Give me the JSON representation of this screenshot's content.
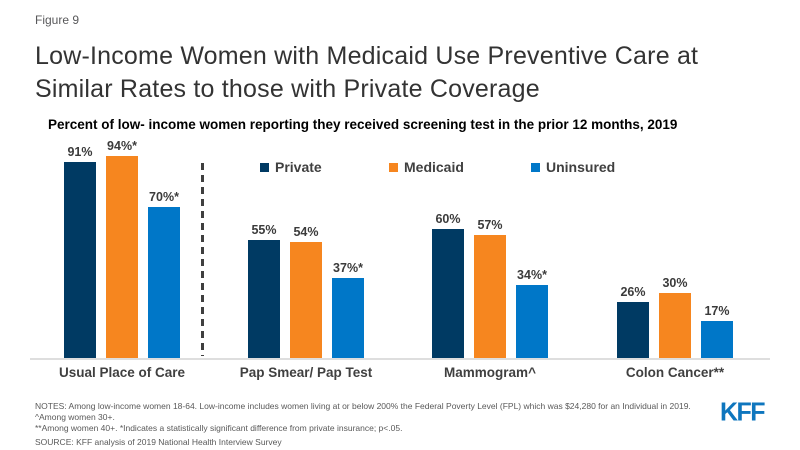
{
  "figure_label": "Figure 9",
  "title": {
    "line1": "Low-Income Women with Medicaid Use Preventive Care at",
    "line2": "Similar Rates to those with Private Coverage",
    "full": "Low-Income Women with Medicaid Use Preventive Care at Similar Rates to those with Private Coverage"
  },
  "subtitle": "Percent of low- income women reporting they received screening test in the prior 12 months, 2019",
  "colors": {
    "private": "#003a63",
    "medicaid": "#f6861f",
    "uninsured": "#0077c8",
    "kff_blue": "#0e76be",
    "baseline_gray": "#dedede",
    "text_dark": "#404040"
  },
  "legend": [
    {
      "label": "Private",
      "color": "#003a63"
    },
    {
      "label": "Medicaid",
      "color": "#f6861f"
    },
    {
      "label": "Uninsured",
      "color": "#0077c8"
    }
  ],
  "chart_data": {
    "type": "bar",
    "title": "Percent of low- income women reporting they received screening test in the prior 12 months, 2019",
    "categories": [
      "Usual Place of Care",
      "Pap Smear/ Pap Test",
      "Mammogram^",
      "Colon Cancer**"
    ],
    "series": [
      {
        "name": "Private",
        "values": [
          91,
          55,
          60,
          26
        ],
        "labels": [
          "91%",
          "55%",
          "60%",
          "26%"
        ]
      },
      {
        "name": "Medicaid",
        "values": [
          94,
          54,
          57,
          30
        ],
        "labels": [
          "94%*",
          "54%",
          "57%",
          "30%"
        ]
      },
      {
        "name": "Uninsured",
        "values": [
          70,
          37,
          34,
          17
        ],
        "labels": [
          "70%*",
          "37%*",
          "34%*",
          "17%"
        ]
      }
    ],
    "ylim": [
      0,
      100
    ],
    "grid": false,
    "legend_position": "top",
    "separator_after_category_index": 0
  },
  "notes": {
    "line1": "NOTES: Among low-income women 18-64. Low-income includes women living at or below 200% the Federal Poverty Level (FPL) which was $24,280 for an Individual in 2019.  ^Among women 30+.",
    "line2": "**Among women 40+. *Indicates a statistically significant difference from private insurance; p<.05.",
    "source": "SOURCE: KFF analysis of 2019 National Health Interview Survey"
  },
  "logo_text": "KFF"
}
